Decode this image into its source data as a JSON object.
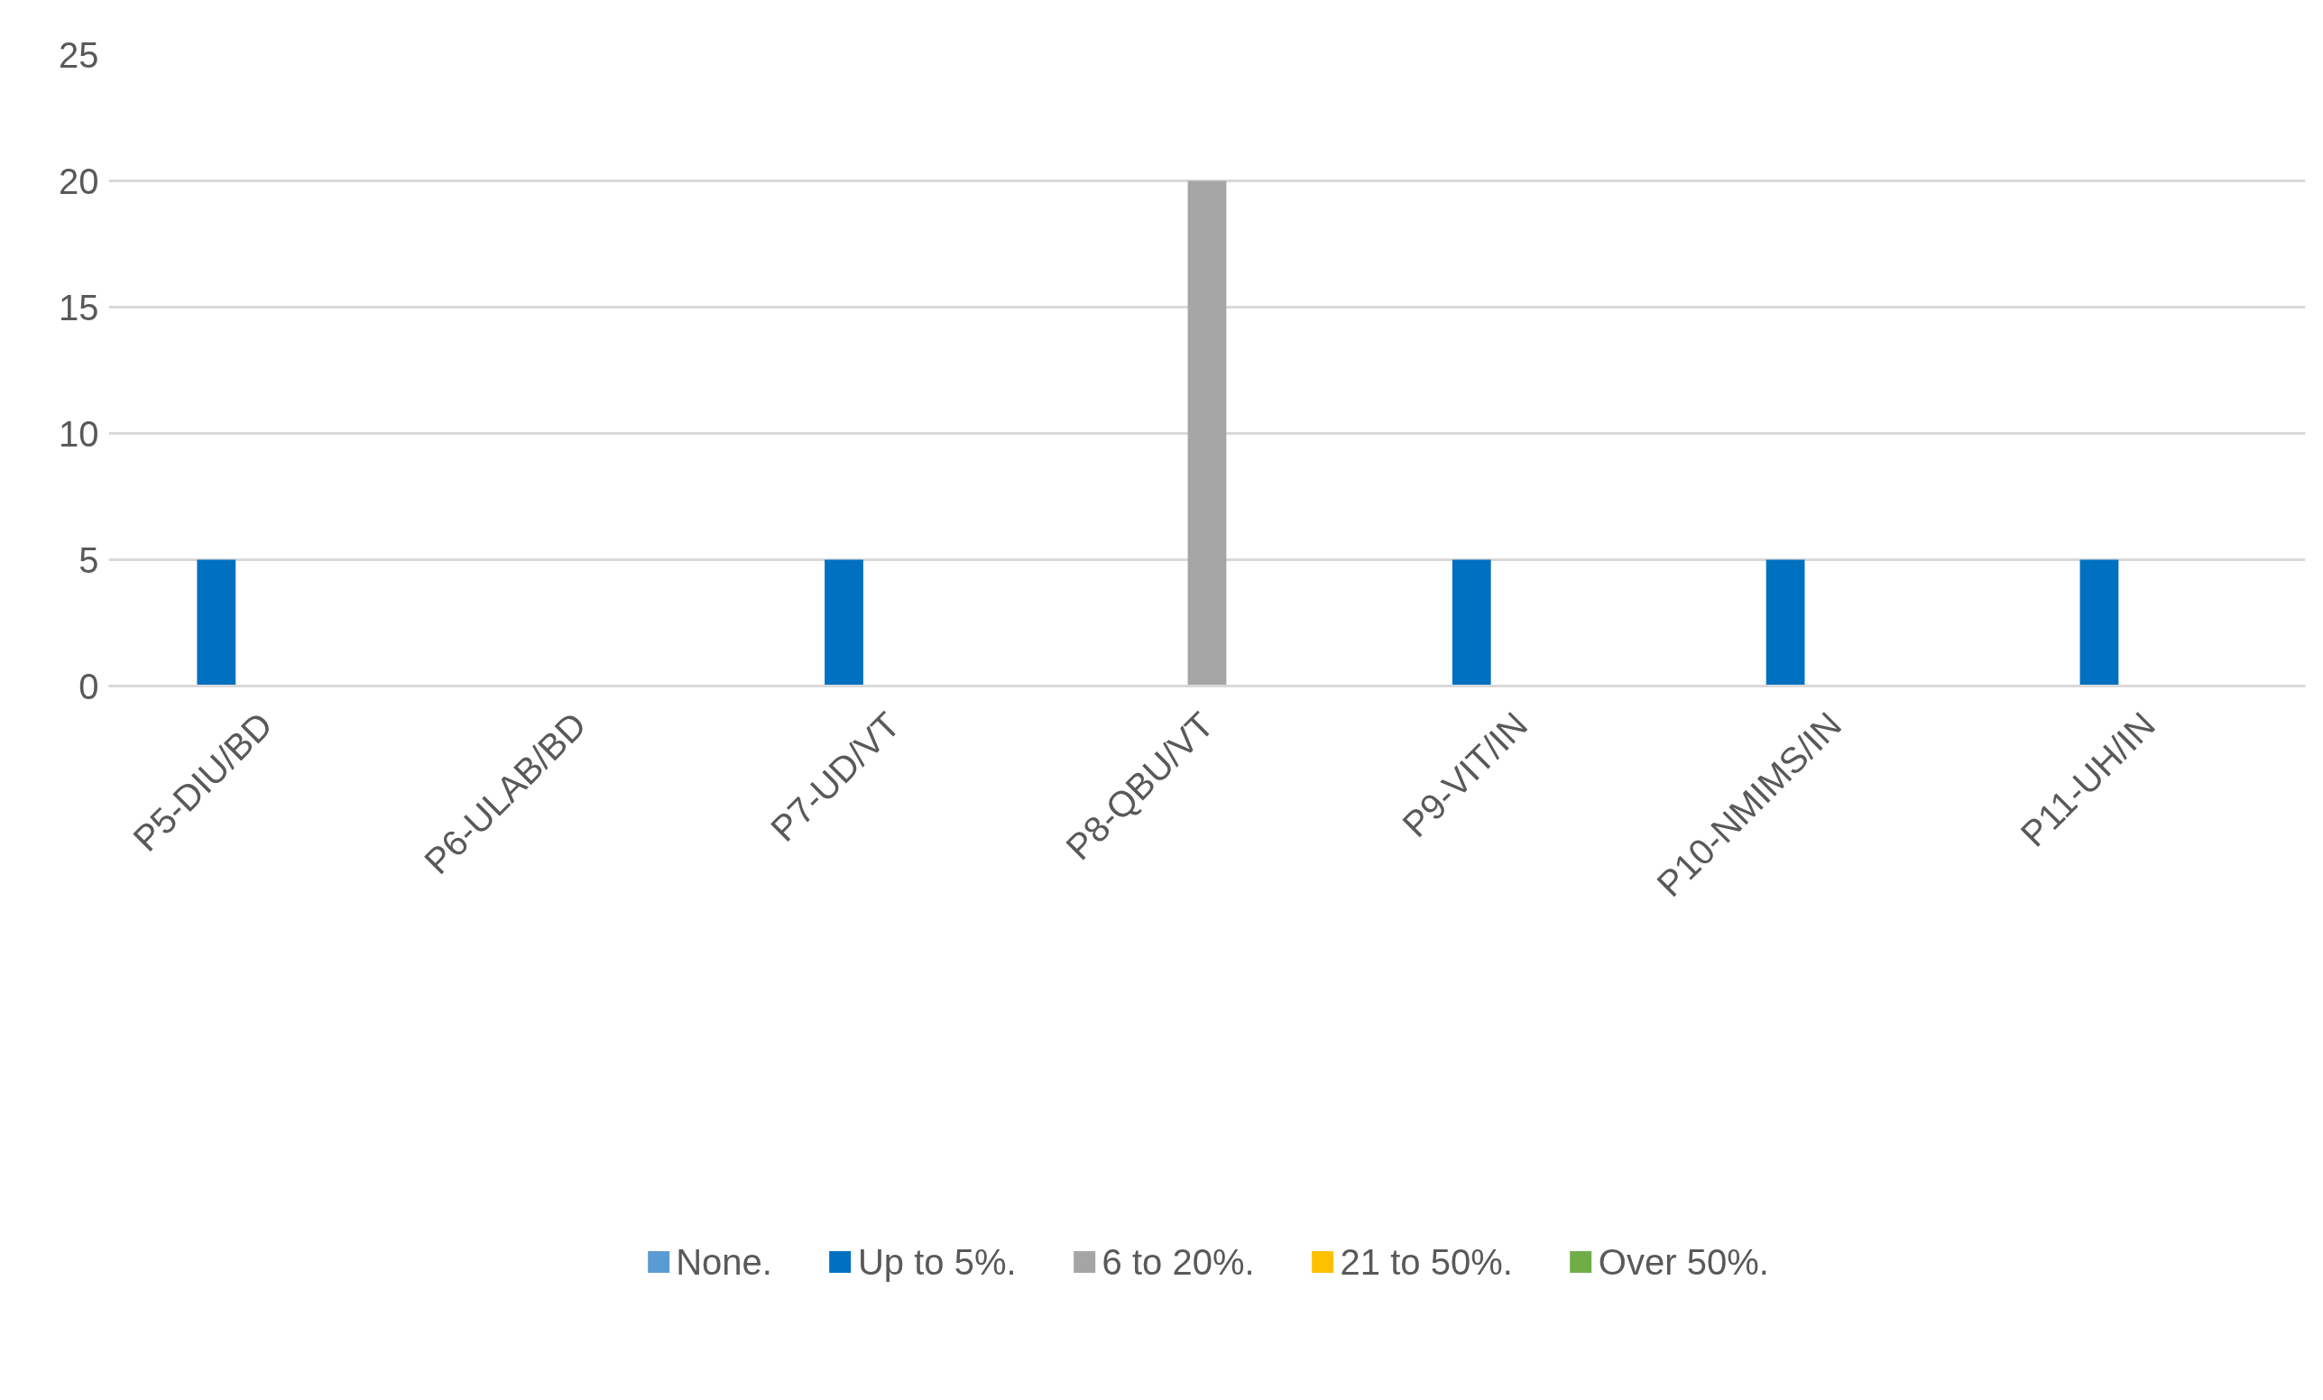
{
  "chart_data": {
    "type": "bar",
    "categories": [
      "P5-DIU/BD",
      "P6-ULAB/BD",
      "P7-UD/VT",
      "P8-QBU/VT",
      "P9-VIT/IN",
      "P10-NMIMS/IN",
      "P11-UH/IN"
    ],
    "series": [
      {
        "name": "None.",
        "color": "#5b9bd5",
        "values": [
          0,
          0,
          0,
          0,
          0,
          0,
          0
        ]
      },
      {
        "name": "Up to 5%.",
        "color": "#0070c0",
        "values": [
          5,
          0,
          5,
          0,
          5,
          5,
          5
        ]
      },
      {
        "name": "6 to 20%.",
        "color": "#a5a5a5",
        "values": [
          0,
          0,
          0,
          20,
          0,
          0,
          0
        ]
      },
      {
        "name": "21 to 50%.",
        "color": "#ffc000",
        "values": [
          0,
          0,
          0,
          0,
          0,
          0,
          0
        ]
      },
      {
        "name": "Over 50%.",
        "color": "#70ad47",
        "values": [
          0,
          0,
          0,
          0,
          0,
          0,
          0
        ]
      }
    ],
    "ylim": [
      0,
      25
    ],
    "yticks": [
      0,
      5,
      10,
      15,
      20,
      25
    ],
    "grid": "y",
    "legend": "bottom"
  }
}
